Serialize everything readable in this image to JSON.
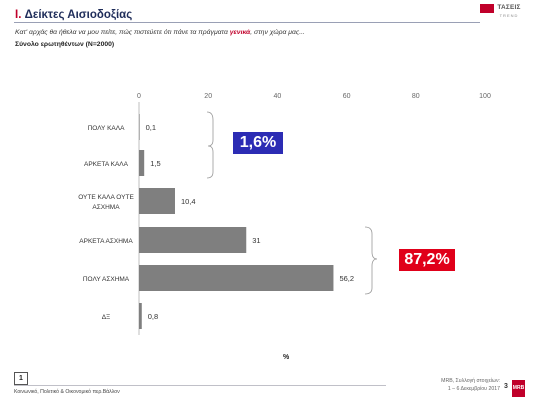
{
  "header": {
    "roman": "I.",
    "title": "Δείκτες Αισιοδοξίας",
    "logo_text": "ΤΑΣΕΙΣ",
    "logo_sub": "TREND",
    "question_before": "Κατ' αρχάς θα ήθελα να μου πείτε, πώς πιστεύετε ότι πάνε τα πράγματα ",
    "question_highlight": "γενικά",
    "question_after": ", στην χώρα μας...",
    "base": "Σύνολο ερωτηθέντων (N=2000)"
  },
  "chart_data": {
    "type": "bar",
    "orientation": "horizontal",
    "categories": [
      "ΠΟΛΥ ΚΑΛΑ",
      "ΑΡΚΕΤΑ ΚΑΛΑ",
      "ΟΥΤΕ ΚΑΛΑ ΟΥΤΕ ΑΣΧΗΜΑ",
      "ΑΡΚΕΤΑ ΑΣΧΗΜΑ",
      "ΠΟΛΥ ΑΣΧΗΜΑ",
      "ΔΞ"
    ],
    "category_lines": [
      [
        "ΠΟΛΥ ΚΑΛΑ"
      ],
      [
        "ΑΡΚΕΤΑ ΚΑΛΑ"
      ],
      [
        "ΟΥΤΕ ΚΑΛΑ ΟΥΤΕ",
        "ΑΣΧΗΜΑ"
      ],
      [
        "ΑΡΚΕΤΑ ΑΣΧΗΜΑ"
      ],
      [
        "ΠΟΛΥ ΑΣΧΗΜΑ"
      ],
      [
        "ΔΞ"
      ]
    ],
    "values": [
      0.1,
      1.5,
      10.4,
      31,
      56.2,
      0.8
    ],
    "value_labels": [
      "0,1",
      "1,5",
      "10,4",
      "31",
      "56,2",
      "0,8"
    ],
    "xlim": [
      0,
      100
    ],
    "xticks": [
      0,
      20,
      40,
      60,
      80,
      100
    ],
    "bar_color": "#7f7f7f",
    "xlabel": "%",
    "grid": false,
    "annotations": [
      {
        "text": "1,6%",
        "groups": [
          0,
          1
        ],
        "color": "#2c2cb4"
      },
      {
        "text": "87,2%",
        "groups": [
          3,
          4
        ],
        "color": "#e0001a"
      }
    ]
  },
  "footer": {
    "page_box": "1",
    "left": "Κοινωνικό, Πολιτικό & Οικονομικό περ.Βάλλον",
    "right1": "MRB, Συλλογή στοιχείων:",
    "right2": "1 – 6 Δεκεμβρίου 2017",
    "page_num": "3",
    "mrb": "MRB"
  }
}
